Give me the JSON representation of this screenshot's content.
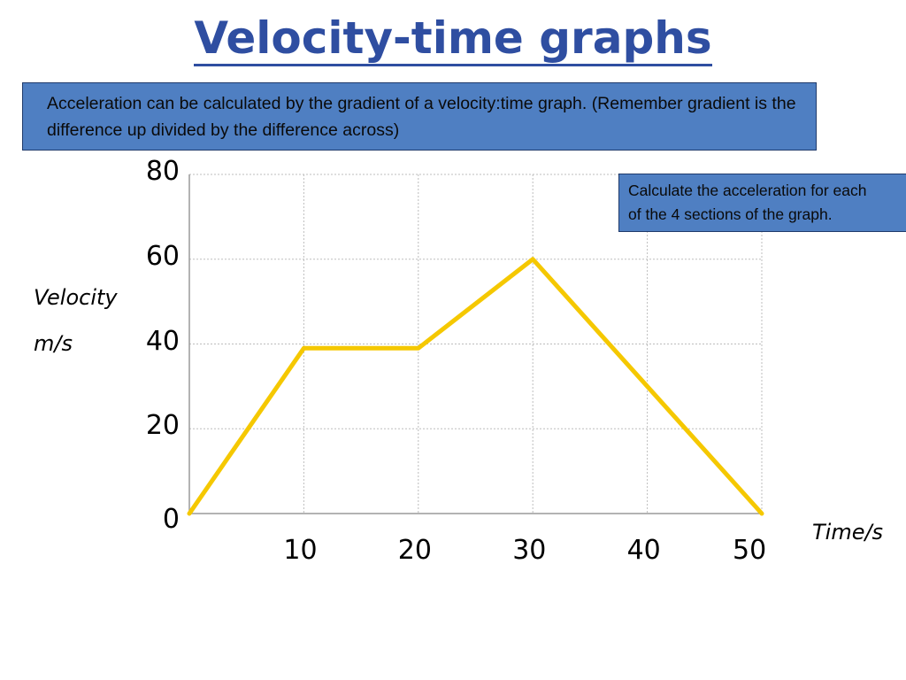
{
  "title": "Velocity-time graphs",
  "info_text": "Acceleration can be calculated by the gradient of a velocity:time graph. (Remember gradient is the difference up divided by the difference across)",
  "task_text_line1": "Calculate the acceleration for each",
  "task_text_line2": "of the 4 sections of the graph.",
  "colors": {
    "title": "#2f4ea1",
    "box_fill": "#4f7fc2",
    "line": "#f5c800",
    "grid": "#bdbdbd"
  },
  "chart_data": {
    "type": "line",
    "title": "",
    "ylabel_line1": "Velocity",
    "ylabel_line2": "m/s",
    "xlabel": "Time/s",
    "xlim": [
      0,
      50
    ],
    "ylim": [
      0,
      80
    ],
    "x_ticks": [
      10,
      20,
      30,
      40,
      50
    ],
    "y_ticks": [
      0,
      20,
      40,
      60,
      80
    ],
    "x_tick_labels": [
      "10",
      "20",
      "30",
      "40",
      "50"
    ],
    "y_tick_labels": [
      "0",
      "20",
      "40",
      "60",
      "80"
    ],
    "grid": true,
    "series": [
      {
        "x": [
          0,
          10,
          20,
          30,
          50
        ],
        "y": [
          0,
          39,
          39,
          60,
          0
        ]
      }
    ]
  }
}
